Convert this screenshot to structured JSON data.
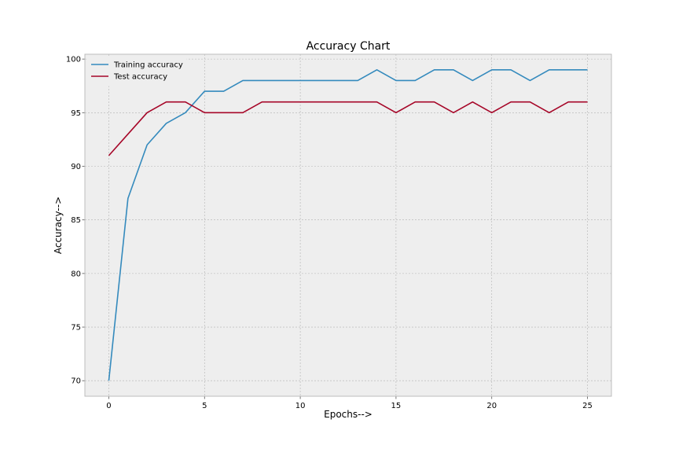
{
  "chart_data": {
    "type": "line",
    "title": "Accuracy Chart",
    "xlabel": "Epochs-->",
    "ylabel": "Accuracy-->",
    "xlim": [
      -1.25,
      26.25
    ],
    "ylim": [
      68.55,
      100.45
    ],
    "xticks": [
      0,
      5,
      10,
      15,
      20,
      25
    ],
    "yticks": [
      70,
      75,
      80,
      85,
      90,
      95,
      100
    ],
    "grid": true,
    "legend_position": "upper left",
    "x": [
      0,
      1,
      2,
      3,
      4,
      5,
      6,
      7,
      8,
      9,
      10,
      11,
      12,
      13,
      14,
      15,
      16,
      17,
      18,
      19,
      20,
      21,
      22,
      23,
      24,
      25
    ],
    "series": [
      {
        "name": "Training accuracy",
        "color": "#348ABD",
        "values": [
          70,
          87,
          92,
          94,
          95,
          97,
          97,
          98,
          98,
          98,
          98,
          98,
          98,
          98,
          99,
          98,
          98,
          99,
          99,
          98,
          99,
          99,
          98,
          99,
          99,
          99
        ]
      },
      {
        "name": "Test accuracy",
        "color": "#A60628",
        "values": [
          91,
          93,
          95,
          96,
          96,
          95,
          95,
          95,
          96,
          96,
          96,
          96,
          96,
          96,
          96,
          95,
          96,
          96,
          95,
          96,
          95,
          96,
          96,
          95,
          96,
          96
        ]
      }
    ],
    "background_color": "#EEEEEE",
    "grid_color": "#B2B2B2",
    "frame_color": "#BCBCBC"
  }
}
